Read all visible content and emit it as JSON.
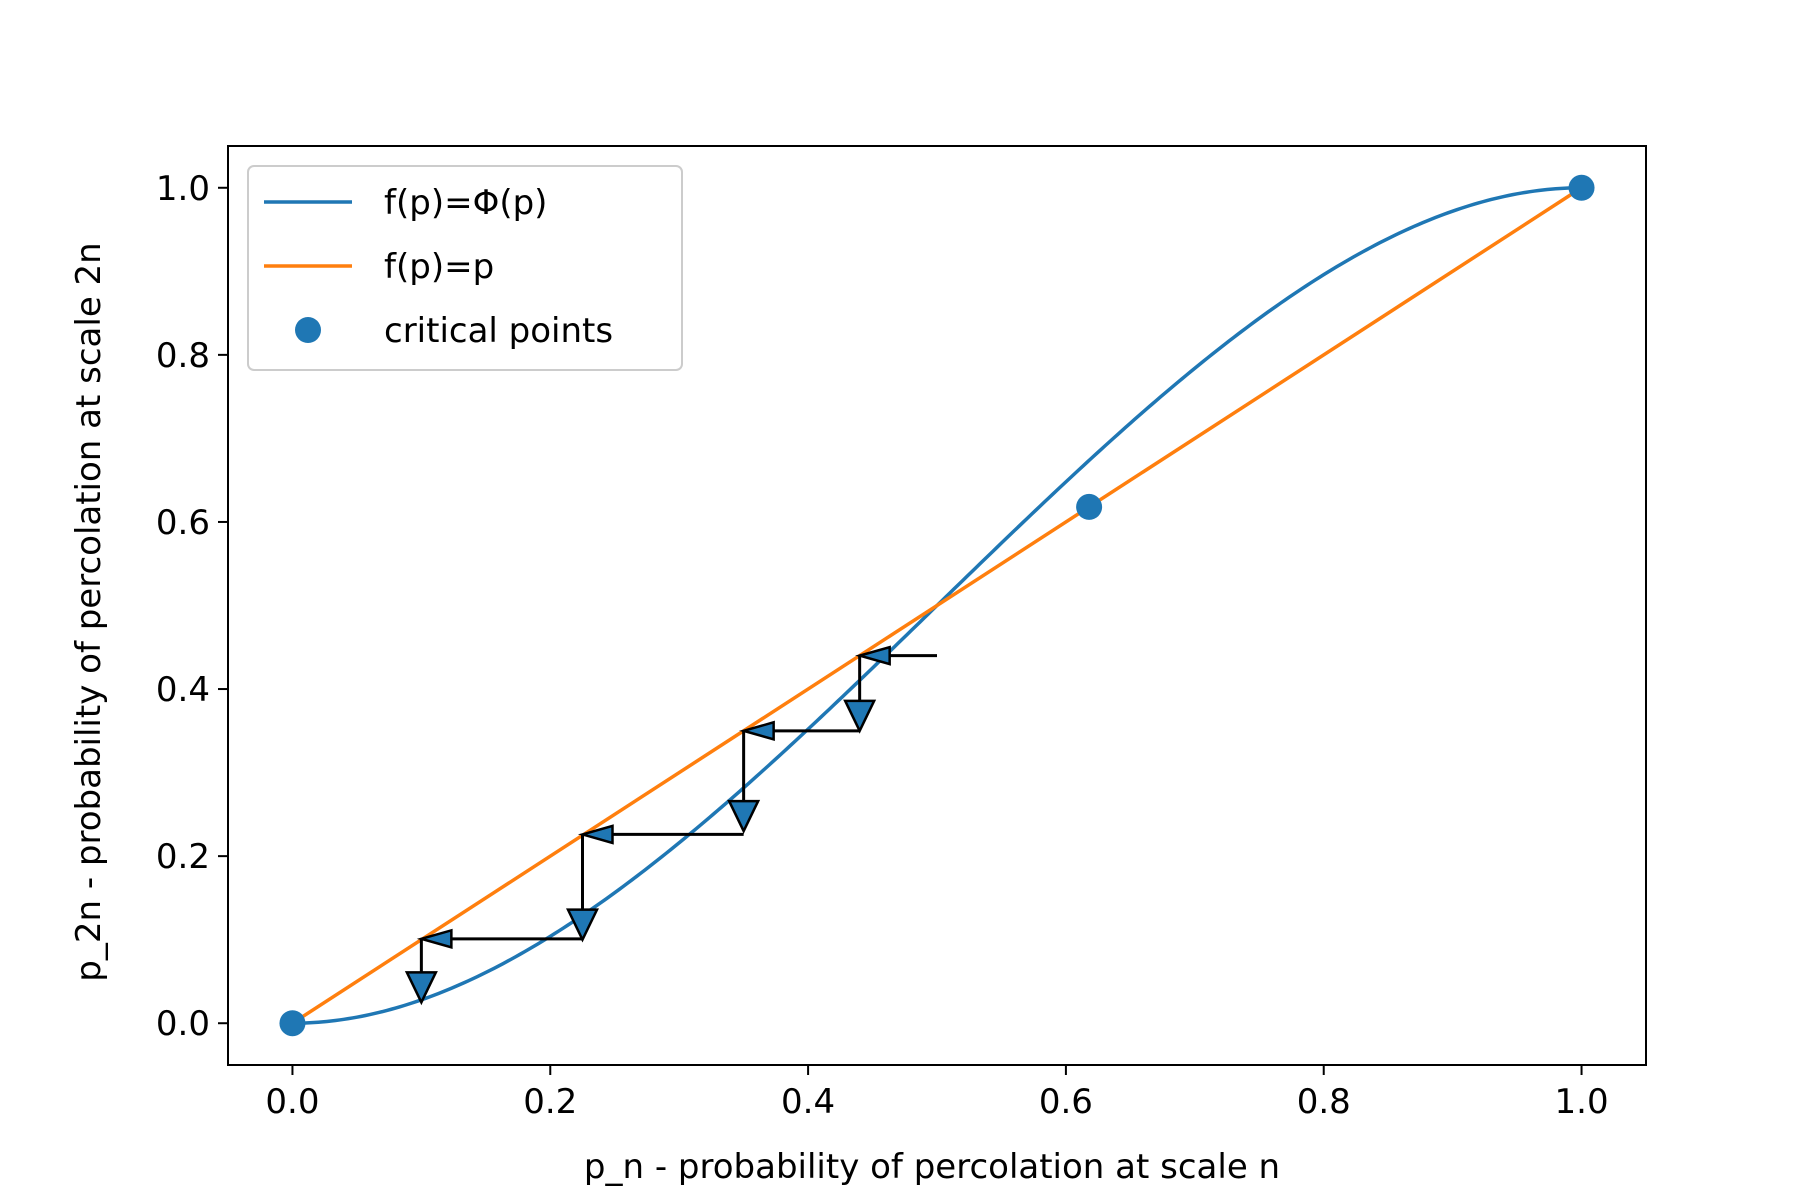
{
  "chart_data": {
    "type": "line",
    "xlabel": "p_n - probability of percolation at scale n",
    "ylabel": "p_2n - probability of percolation at scale 2n",
    "xlim": [
      -0.05,
      1.05
    ],
    "ylim": [
      -0.05,
      1.05
    ],
    "xticks": [
      0.0,
      0.2,
      0.4,
      0.6,
      0.8,
      1.0
    ],
    "xtick_labels": [
      "0.0",
      "0.2",
      "0.4",
      "0.6",
      "0.8",
      "1.0"
    ],
    "yticks": [
      0.0,
      0.2,
      0.4,
      0.6,
      0.8,
      1.0
    ],
    "ytick_labels": [
      "0.0",
      "0.2",
      "0.4",
      "0.6",
      "0.8",
      "1.0"
    ],
    "grid": false,
    "legend_position": "upper-left",
    "series": [
      {
        "name": "f(p)=Φ(p)",
        "color": "#1f77b4",
        "x": [
          0.0,
          0.05,
          0.1,
          0.15,
          0.2,
          0.25,
          0.3,
          0.35,
          0.4,
          0.45,
          0.5,
          0.55,
          0.6,
          0.618,
          0.65,
          0.7,
          0.75,
          0.8,
          0.85,
          0.9,
          0.95,
          1.0
        ],
        "y": [
          0.0,
          0.0073,
          0.028,
          0.0608,
          0.104,
          0.1563,
          0.216,
          0.2818,
          0.352,
          0.4253,
          0.5,
          0.5748,
          0.648,
          0.6736,
          0.7183,
          0.784,
          0.8438,
          0.896,
          0.9393,
          0.972,
          0.9928,
          1.0
        ]
      },
      {
        "name": "f(p)=p",
        "color": "#ff7f0e",
        "x": [
          0.0,
          1.0
        ],
        "y": [
          0.0,
          1.0
        ]
      }
    ],
    "critical_points": {
      "name": "critical points",
      "color": "#1f77b4",
      "x": [
        0.0,
        0.618,
        1.0
      ],
      "y": [
        0.0,
        0.618,
        1.0
      ]
    },
    "cobweb_arrows": [
      {
        "direction": "left",
        "x_from": 0.5,
        "x_to": 0.44,
        "y": 0.44
      },
      {
        "direction": "down",
        "x": 0.44,
        "y_from": 0.44,
        "y_to": 0.35
      },
      {
        "direction": "left",
        "x_from": 0.44,
        "x_to": 0.35,
        "y": 0.35
      },
      {
        "direction": "down",
        "x": 0.35,
        "y_from": 0.35,
        "y_to": 0.23
      },
      {
        "direction": "left",
        "x_from": 0.35,
        "x_to": 0.225,
        "y": 0.226
      },
      {
        "direction": "down",
        "x": 0.225,
        "y_from": 0.226,
        "y_to": 0.1
      },
      {
        "direction": "left",
        "x_from": 0.225,
        "x_to": 0.1,
        "y": 0.101
      },
      {
        "direction": "down",
        "x": 0.1,
        "y_from": 0.101,
        "y_to": 0.025
      }
    ]
  }
}
